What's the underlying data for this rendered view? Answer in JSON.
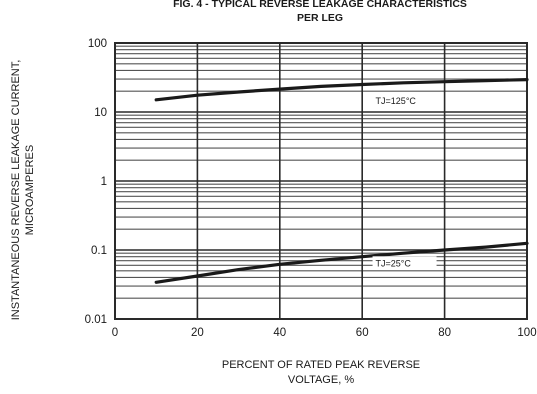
{
  "chart_data": {
    "type": "line",
    "title": "FIG. 4 - TYPICAL REVERSE LEAKAGE CHARACTERISTICS",
    "subtitle": "PER LEG",
    "xlabel": [
      "PERCENT OF RATED PEAK REVERSE",
      "VOLTAGE, %"
    ],
    "ylabel": [
      "INSTANTANEOUS REVERSE LEAKAGE CURRENT,",
      "MICROAMPERES"
    ],
    "xlim": [
      0,
      100
    ],
    "ylim": [
      0.01,
      100
    ],
    "yscale": "log",
    "grid": true,
    "x_ticks": [
      {
        "value": 0,
        "label": "0"
      },
      {
        "value": 20,
        "label": "20"
      },
      {
        "value": 40,
        "label": "40"
      },
      {
        "value": 60,
        "label": "60"
      },
      {
        "value": 80,
        "label": "80"
      },
      {
        "value": 100,
        "label": "100"
      }
    ],
    "y_ticks": [
      {
        "value": 0.01,
        "label": "0.01"
      },
      {
        "value": 0.1,
        "label": "0.1"
      },
      {
        "value": 1,
        "label": "1"
      },
      {
        "value": 10,
        "label": "10"
      },
      {
        "value": 100,
        "label": "100"
      }
    ],
    "series": [
      {
        "name": "TJ=125°C",
        "x": [
          10,
          20,
          30,
          40,
          50,
          60,
          70,
          80,
          90,
          100
        ],
        "y": [
          15,
          17.5,
          19.5,
          21.5,
          23.5,
          25,
          26.5,
          27.5,
          28.5,
          29.5
        ]
      },
      {
        "name": "TJ=25°C",
        "x": [
          10,
          20,
          30,
          40,
          50,
          60,
          70,
          80,
          90,
          100
        ],
        "y": [
          0.034,
          0.042,
          0.052,
          0.062,
          0.071,
          0.08,
          0.09,
          0.1,
          0.11,
          0.125
        ]
      }
    ],
    "colors": {
      "curve": "#1a1a1a",
      "grid_major": "#2a2a2a",
      "grid_minor": "#555555",
      "text": "#1a1a1a",
      "label_box": "#ffffff"
    }
  }
}
